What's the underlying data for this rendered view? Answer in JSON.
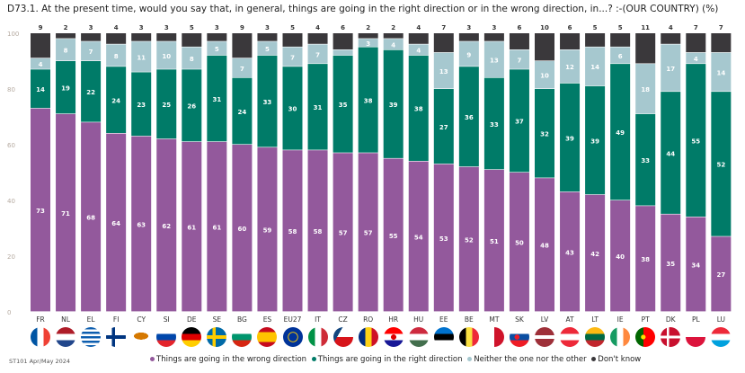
{
  "title": "D73.1. At the present time, would you say that, in general, things are going in the right direction or in the wrong direction, in...? :-(OUR COUNTRY) (%)",
  "source": "ST101 Apr/May 2024",
  "colors": {
    "wrong": "#93599c",
    "right": "#007b68",
    "neither": "#a6c8cf",
    "dontknow": "#3a383b"
  },
  "chart_data": {
    "type": "bar",
    "stacked": true,
    "title": "D73.1. At the present time, would you say that, in general, things are going in the right direction or in the wrong direction, in...? :-(OUR COUNTRY) (%)",
    "xlabel": "",
    "ylabel": "",
    "ylim": [
      0,
      100
    ],
    "yticks": [
      0,
      20,
      40,
      60,
      80,
      100
    ],
    "grid": false,
    "legend_position": "bottom",
    "categories": [
      "FR",
      "NL",
      "EL",
      "FI",
      "CY",
      "SI",
      "DE",
      "SE",
      "BG",
      "ES",
      "EU27",
      "IT",
      "CZ",
      "RO",
      "HR",
      "HU",
      "EE",
      "BE",
      "MT",
      "SK",
      "LV",
      "AT",
      "LT",
      "IE",
      "PT",
      "DK",
      "PL",
      "LU"
    ],
    "series": [
      {
        "name": "Things are going in the wrong direction",
        "key": "wrong",
        "values": [
          73,
          71,
          68,
          64,
          63,
          62,
          61,
          61,
          60,
          59,
          58,
          58,
          57,
          57,
          55,
          54,
          53,
          52,
          51,
          50,
          48,
          43,
          42,
          40,
          38,
          35,
          34,
          27
        ]
      },
      {
        "name": "Things are going in the right direction",
        "key": "right",
        "values": [
          14,
          19,
          22,
          24,
          23,
          25,
          26,
          31,
          24,
          33,
          30,
          31,
          35,
          38,
          39,
          38,
          27,
          36,
          33,
          37,
          32,
          39,
          39,
          49,
          33,
          44,
          55,
          52
        ]
      },
      {
        "name": "Neither the one nor the other",
        "key": "neither",
        "values": [
          4,
          8,
          7,
          8,
          11,
          10,
          8,
          5,
          7,
          5,
          7,
          7,
          2,
          3,
          4,
          4,
          13,
          9,
          13,
          7,
          10,
          12,
          14,
          6,
          18,
          17,
          4,
          14
        ]
      },
      {
        "name": "Don't know",
        "key": "dontknow",
        "values": [
          9,
          2,
          3,
          4,
          3,
          3,
          5,
          3,
          9,
          3,
          5,
          4,
          6,
          2,
          2,
          4,
          7,
          3,
          3,
          6,
          10,
          6,
          5,
          5,
          11,
          4,
          7,
          7
        ]
      }
    ],
    "hidden_labels": {
      "neither": [
        "CZ"
      ]
    }
  },
  "legend": [
    {
      "label": "Things are going in the wrong direction",
      "key": "wrong"
    },
    {
      "label": "Things are going in the right direction",
      "key": "right"
    },
    {
      "label": "Neither the one nor the other",
      "key": "neither"
    },
    {
      "label": "Don't know",
      "key": "dontknow"
    }
  ],
  "flags": [
    "france-flag",
    "netherlands-flag",
    "greece-flag",
    "finland-flag",
    "cyprus-flag",
    "slovenia-flag",
    "germany-flag",
    "sweden-flag",
    "bulgaria-flag",
    "spain-flag",
    "eu-flag",
    "italy-flag",
    "czechia-flag",
    "romania-flag",
    "croatia-flag",
    "hungary-flag",
    "estonia-flag",
    "belgium-flag",
    "malta-flag",
    "slovakia-flag",
    "latvia-flag",
    "austria-flag",
    "lithuania-flag",
    "ireland-flag",
    "portugal-flag",
    "denmark-flag",
    "poland-flag",
    "luxembourg-flag"
  ]
}
